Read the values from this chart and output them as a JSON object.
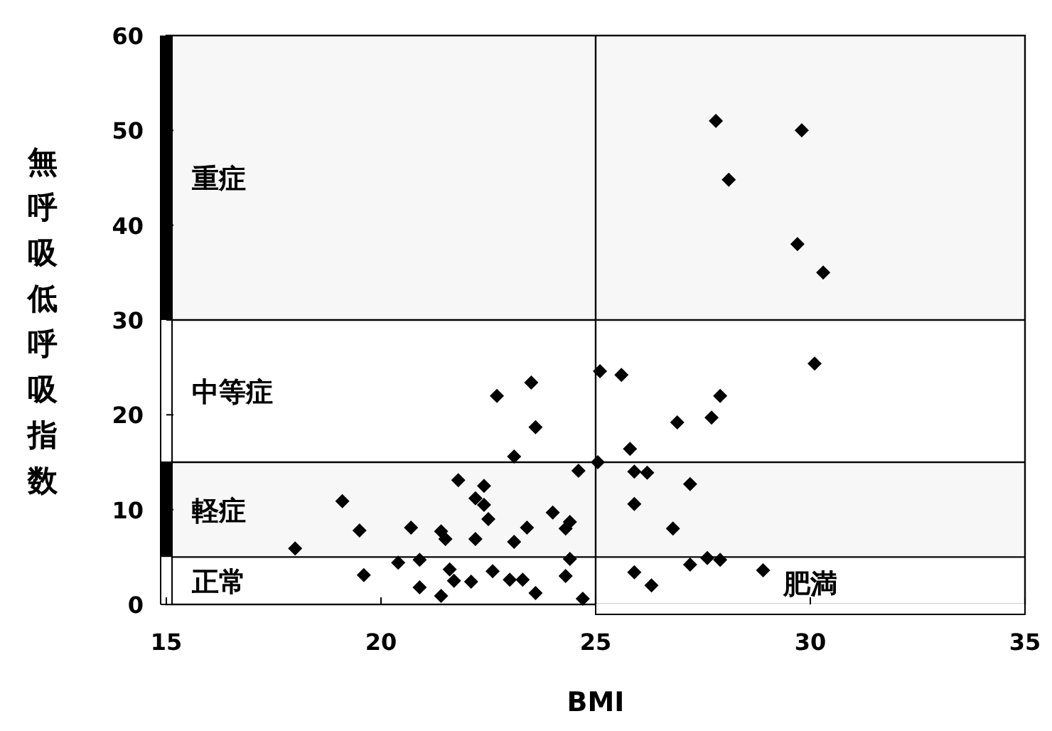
{
  "chart_data": {
    "type": "scatter",
    "xlabel": "BMI",
    "ylabel": "無呼吸低呼吸指数",
    "xlim": [
      15,
      35
    ],
    "xticks": [
      15,
      20,
      25,
      30,
      35
    ],
    "ylim": [
      0,
      60
    ],
    "yticks": [
      0,
      10,
      20,
      30,
      40,
      50,
      60
    ],
    "grid": false,
    "legend": false,
    "marker": "diamond",
    "series": [
      {
        "color": "#000000",
        "x": [
          27.8,
          29.8,
          28.1,
          29.7,
          30.3,
          30.1,
          25.1,
          25.6,
          27.9,
          27.7,
          26.9,
          25.8,
          25.05,
          25.9,
          26.2,
          27.2,
          25.9,
          26.8,
          27.6,
          27.9,
          27.2,
          28.9,
          25.9,
          26.3,
          23.5,
          22.7,
          23.6,
          23.1,
          24.6,
          21.8,
          22.4,
          19.1,
          22.2,
          22.4,
          22.5,
          24.0,
          24.4,
          24.3,
          23.4,
          19.5,
          20.7,
          21.4,
          21.5,
          22.2,
          23.1,
          18.0,
          24.4,
          20.4,
          20.9,
          19.6,
          21.6,
          21.7,
          22.1,
          22.6,
          23.0,
          23.3,
          24.3,
          20.9,
          21.4,
          23.6,
          24.7
        ],
        "values": [
          51,
          50,
          44.8,
          38,
          35,
          25.4,
          24.6,
          24.2,
          22,
          19.7,
          19.2,
          16.4,
          15,
          14,
          13.9,
          12.7,
          10.6,
          8,
          4.9,
          4.7,
          4.2,
          3.6,
          3.4,
          2,
          23.4,
          22,
          18.7,
          15.6,
          14.1,
          13.1,
          12.5,
          10.9,
          11.2,
          10.5,
          9,
          9.7,
          8.7,
          8,
          8.1,
          7.8,
          8.1,
          7.7,
          6.9,
          6.9,
          6.6,
          5.9,
          4.8,
          4.4,
          4.7,
          3.1,
          3.7,
          2.5,
          2.4,
          3.5,
          2.6,
          2.6,
          3,
          1.8,
          0.9,
          1.2,
          0.6
        ]
      }
    ],
    "ref_lines": [
      {
        "axis": "y",
        "value": 5
      },
      {
        "axis": "y",
        "value": 15
      },
      {
        "axis": "y",
        "value": 30
      },
      {
        "axis": "x",
        "value": 25
      }
    ],
    "bands": [
      {
        "axis": "y",
        "from": 30,
        "to": 60,
        "label": "重症",
        "color": "#000000"
      },
      {
        "axis": "y",
        "from": 15,
        "to": 30,
        "label": "中等症",
        "color": "#ffffff"
      },
      {
        "axis": "y",
        "from": 5,
        "to": 15,
        "label": "軽症",
        "color": "#000000"
      },
      {
        "axis": "y",
        "from": 0,
        "to": 5,
        "label": "正常",
        "color": "#ffffff"
      },
      {
        "axis": "x",
        "from": 25,
        "to": 35,
        "label": "肥満",
        "color": "#ffffff"
      }
    ]
  }
}
